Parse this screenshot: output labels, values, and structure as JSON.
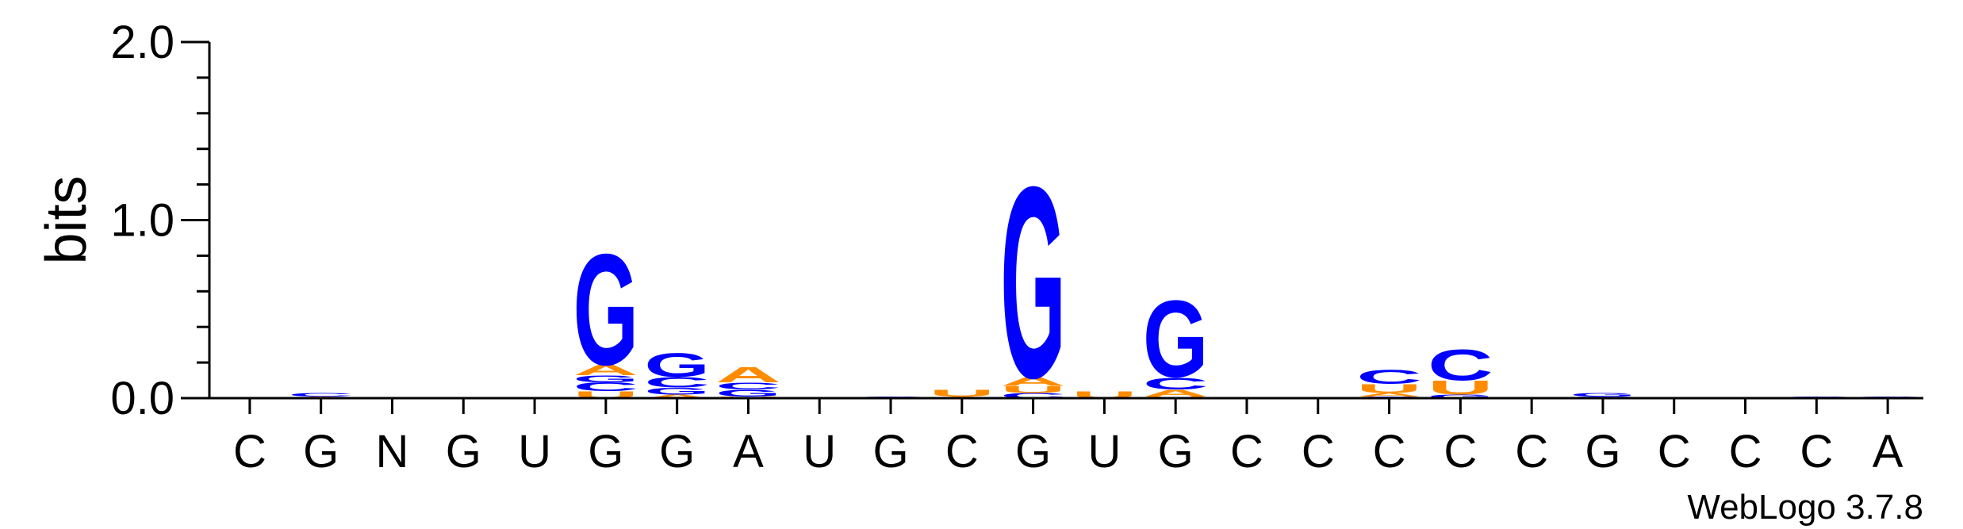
{
  "chart_data": {
    "type": "sequence-logo",
    "ylabel": "bits",
    "ylim": [
      0,
      2.0
    ],
    "yticks": [
      "0.0",
      "1.0",
      "2.0"
    ],
    "positions": [
      "C",
      "G",
      "N",
      "G",
      "U",
      "G",
      "G",
      "A",
      "U",
      "G",
      "C",
      "G",
      "U",
      "G",
      "C",
      "C",
      "C",
      "C",
      "C",
      "G",
      "C",
      "C",
      "C",
      "A"
    ],
    "colors": {
      "G": "#0000ff",
      "C": "#0000ff",
      "A": "#ff8c00",
      "U": "#ff8c00"
    },
    "stacks": [
      [],
      [
        {
          "base": "A",
          "bits": 0.01
        },
        {
          "base": "C",
          "bits": 0.02
        }
      ],
      [],
      [],
      [],
      [
        {
          "base": "U",
          "bits": 0.04
        },
        {
          "base": "C",
          "bits": 0.05
        },
        {
          "base": "G",
          "bits": 0.04
        },
        {
          "base": "A",
          "bits": 0.06
        },
        {
          "base": "G",
          "bits": 0.65
        }
      ],
      [
        {
          "base": "A",
          "bits": 0.02
        },
        {
          "base": "G",
          "bits": 0.04
        },
        {
          "base": "C",
          "bits": 0.06
        },
        {
          "base": "G",
          "bits": 0.14
        }
      ],
      [
        {
          "base": "U",
          "bits": 0.01
        },
        {
          "base": "G",
          "bits": 0.04
        },
        {
          "base": "C",
          "bits": 0.04
        },
        {
          "base": "A",
          "bits": 0.09
        }
      ],
      [],
      [
        {
          "base": "C",
          "bits": 0.01
        }
      ],
      [
        {
          "base": "A",
          "bits": 0.01
        },
        {
          "base": "U",
          "bits": 0.04
        }
      ],
      [
        {
          "base": "C",
          "bits": 0.03
        },
        {
          "base": "U",
          "bits": 0.04
        },
        {
          "base": "A",
          "bits": 0.05
        },
        {
          "base": "G",
          "bits": 1.12
        }
      ],
      [
        {
          "base": "U",
          "bits": 0.04
        }
      ],
      [
        {
          "base": "U",
          "bits": 0.01
        },
        {
          "base": "A",
          "bits": 0.04
        },
        {
          "base": "C",
          "bits": 0.07
        },
        {
          "base": "G",
          "bits": 0.45
        }
      ],
      [],
      [],
      [
        {
          "base": "C",
          "bits": 0.01
        },
        {
          "base": "A",
          "bits": 0.02
        },
        {
          "base": "U",
          "bits": 0.05
        },
        {
          "base": "C",
          "bits": 0.08
        }
      ],
      [
        {
          "base": "G",
          "bits": 0.02
        },
        {
          "base": "U",
          "bits": 0.08
        },
        {
          "base": "C",
          "bits": 0.18
        }
      ],
      [],
      [
        {
          "base": "C",
          "bits": 0.01
        },
        {
          "base": "G",
          "bits": 0.02
        }
      ],
      [],
      [],
      [
        {
          "base": "C",
          "bits": 0.01
        }
      ],
      [
        {
          "base": "C",
          "bits": 0.01
        }
      ]
    ]
  },
  "watermark": "WebLogo 3.7.8"
}
